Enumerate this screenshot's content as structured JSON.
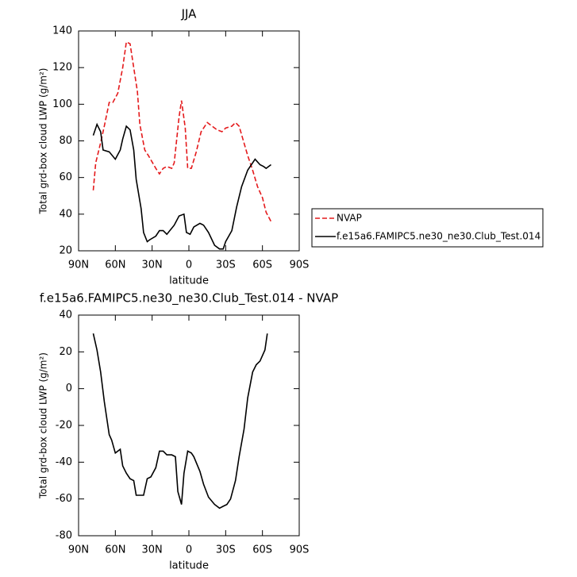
{
  "chart_data": [
    {
      "type": "line",
      "title": "JJA",
      "xlabel": "latitude",
      "ylabel": "Total grd-box cloud LWP (g/m²)",
      "xlim": [
        90,
        -90
      ],
      "xticks": [
        {
          "value": 90,
          "label": "90N"
        },
        {
          "value": 60,
          "label": "60N"
        },
        {
          "value": 30,
          "label": "30N"
        },
        0,
        {
          "value": -30,
          "label": "30S"
        },
        {
          "value": -60,
          "label": "60S"
        },
        {
          "value": -90,
          "label": "90S"
        }
      ],
      "ylim": [
        20,
        140
      ],
      "yticks": [
        20,
        40,
        60,
        80,
        100,
        120,
        140
      ],
      "legend": "right",
      "series": [
        {
          "name": "NVAP",
          "color": "#e41a1c",
          "line_style": "dashed",
          "x": [
            78,
            76,
            72,
            69,
            65,
            62,
            58,
            54,
            51,
            48,
            45,
            42,
            40,
            36,
            33,
            27,
            24,
            21,
            18,
            14,
            12,
            8,
            6,
            3,
            1,
            -2,
            -6,
            -10,
            -15,
            -19,
            -23,
            -27,
            -30,
            -35,
            -38,
            -41,
            -44,
            -48,
            -52,
            -56,
            -60,
            -63,
            -67
          ],
          "values": [
            53,
            68,
            79,
            88,
            101,
            101,
            106,
            120,
            134,
            133,
            120,
            107,
            89,
            75,
            72,
            65,
            62,
            65,
            66,
            65,
            68,
            93,
            102,
            87,
            65,
            65,
            74,
            85,
            90,
            88,
            86,
            85,
            87,
            88,
            90,
            88,
            81,
            72,
            64,
            55,
            49,
            41,
            36
          ]
        },
        {
          "name": "f.e15a6.FAMIPC5.ne30_ne30.Club_Test.014",
          "color": "#000000",
          "line_style": "solid",
          "x": [
            78,
            75,
            72,
            70,
            65,
            60,
            56,
            54,
            51,
            48,
            45,
            43,
            39,
            37,
            34,
            32,
            27,
            24,
            21,
            18,
            12,
            8,
            4,
            2,
            -1,
            -4,
            -9,
            -12,
            -16,
            -21,
            -25,
            -28,
            -30,
            -35,
            -39,
            -43,
            -48,
            -52,
            -54,
            -58,
            -61,
            -63,
            -67
          ],
          "values": [
            83,
            89,
            85,
            75,
            74,
            70,
            75,
            81,
            88,
            86,
            75,
            59,
            43,
            30,
            25,
            26,
            28,
            31,
            31,
            29,
            34,
            39,
            40,
            30,
            29,
            33,
            35,
            34,
            30,
            23,
            21,
            21,
            25,
            31,
            44,
            55,
            64,
            68,
            70,
            67,
            66,
            65,
            67
          ]
        }
      ]
    },
    {
      "type": "line",
      "title": "f.e15a6.FAMIPC5.ne30_ne30.Club_Test.014 - NVAP",
      "xlabel": "latitude",
      "ylabel": "Total grd-box cloud LWP (g/m²)",
      "xlim": [
        90,
        -90
      ],
      "xticks": [
        {
          "value": 90,
          "label": "90N"
        },
        {
          "value": 60,
          "label": "60N"
        },
        {
          "value": 30,
          "label": "30N"
        },
        0,
        {
          "value": -30,
          "label": "30S"
        },
        {
          "value": -60,
          "label": "60S"
        },
        {
          "value": -90,
          "label": "90S"
        }
      ],
      "ylim": [
        -80,
        40
      ],
      "yticks": [
        -80,
        -60,
        -40,
        -20,
        0,
        20,
        40
      ],
      "series": [
        {
          "color": "#000000",
          "line_style": "solid",
          "x": [
            78,
            75,
            72,
            69,
            65,
            63,
            60,
            56,
            54,
            51,
            48,
            45,
            43,
            40,
            37,
            34,
            31,
            27,
            24,
            21,
            18,
            14,
            11,
            9,
            6,
            4,
            1,
            -2,
            -4,
            -9,
            -12,
            -16,
            -21,
            -25,
            -28,
            -31,
            -34,
            -38,
            -41,
            -45,
            -48,
            -52,
            -55,
            -58,
            -62,
            -64
          ],
          "values": [
            30,
            21,
            9,
            -7,
            -25,
            -28,
            -35,
            -33,
            -42,
            -46,
            -49,
            -50,
            -58,
            -58,
            -58,
            -49,
            -48,
            -43,
            -34,
            -34,
            -36,
            -36,
            -37,
            -56,
            -63,
            -46,
            -34,
            -35,
            -37,
            -45,
            -52,
            -59,
            -63,
            -65,
            -64,
            -63,
            -60,
            -50,
            -37,
            -22,
            -5,
            9,
            13,
            15,
            21,
            30
          ]
        }
      ]
    }
  ]
}
